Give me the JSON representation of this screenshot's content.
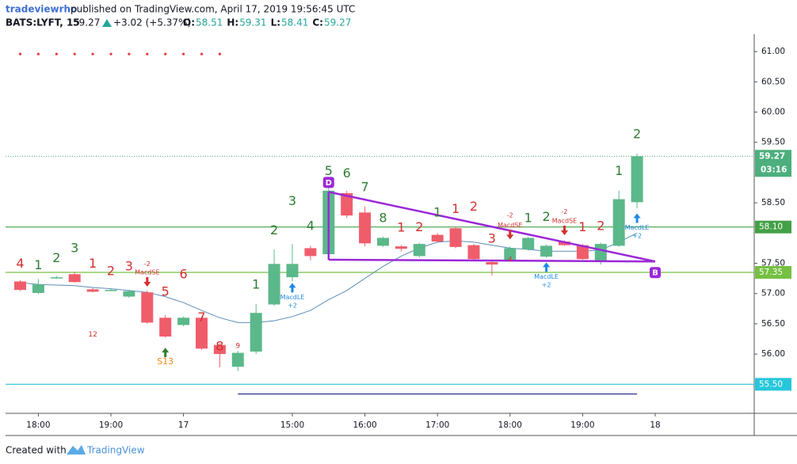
{
  "header": {
    "author": "tradeviewrho",
    "published": "published on TradingView.com, April 17, 2019 19:56:45 UTC",
    "symbol": "BATS:LYFT, 15",
    "last": "59.27",
    "change": "+3.02 (+5.37%)",
    "ohlc": [
      {
        "label": "O:",
        "value": "58.51"
      },
      {
        "label": "H:",
        "value": "59.31"
      },
      {
        "label": "L:",
        "value": "58.41"
      },
      {
        "label": "C:",
        "value": "59.27"
      }
    ]
  },
  "footer": {
    "prefix": "Created with",
    "brand": "TradingView"
  },
  "chart_data": {
    "type": "candlestick",
    "categories": [
      null,
      "18:00",
      null,
      null,
      null,
      "19:00",
      null,
      null,
      null,
      "17",
      null,
      null,
      null,
      null,
      null,
      "15:00",
      null,
      null,
      null,
      "16:00",
      null,
      null,
      null,
      "17:00",
      null,
      null,
      null,
      "18:00",
      null,
      null,
      null,
      "19:00",
      null,
      null,
      null,
      "18"
    ],
    "open": [
      57.2,
      57.01,
      57.25,
      57.32,
      57.07,
      57.06,
      56.95,
      57.02,
      56.6,
      56.48,
      56.6,
      56.15,
      55.79,
      56.04,
      56.82,
      57.27,
      57.75,
      57.65,
      58.66,
      58.34,
      57.79,
      57.78,
      57.62,
      57.97,
      58.08,
      57.8,
      57.52,
      57.56,
      57.73,
      57.61,
      57.86,
      57.8,
      57.53,
      57.79,
      58.51,
      null
    ],
    "high": [
      57.22,
      57.24,
      57.29,
      57.36,
      57.09,
      57.08,
      57.06,
      57.05,
      56.64,
      56.62,
      56.62,
      56.18,
      56.05,
      56.83,
      57.73,
      57.82,
      57.79,
      58.75,
      58.7,
      58.44,
      57.94,
      57.8,
      57.84,
      58.0,
      58.1,
      57.82,
      57.54,
      57.78,
      57.94,
      57.81,
      57.88,
      57.82,
      57.84,
      58.7,
      59.31,
      null
    ],
    "low": [
      57.04,
      56.99,
      57.24,
      57.18,
      57.02,
      57.04,
      56.93,
      56.5,
      56.27,
      56.46,
      56.07,
      55.78,
      55.72,
      56.0,
      56.8,
      57.2,
      57.55,
      57.63,
      58.25,
      57.78,
      57.77,
      57.7,
      57.6,
      57.84,
      57.75,
      57.55,
      57.3,
      57.54,
      57.71,
      57.59,
      57.79,
      57.56,
      57.48,
      57.77,
      58.41,
      null
    ],
    "close": [
      57.06,
      57.15,
      57.27,
      57.19,
      57.03,
      57.06,
      57.04,
      56.52,
      56.29,
      56.6,
      56.09,
      56.0,
      56.02,
      56.68,
      57.49,
      57.49,
      57.62,
      58.7,
      58.29,
      57.83,
      57.92,
      57.74,
      57.82,
      57.86,
      57.77,
      57.57,
      57.48,
      57.75,
      57.92,
      57.79,
      57.8,
      57.57,
      57.82,
      58.56,
      59.27,
      null
    ],
    "up_color": "#5bb88a",
    "down_color": "#ef5d6b",
    "line": {
      "color": "#5b8db8",
      "values": [
        57.18,
        57.15,
        57.14,
        57.13,
        57.1,
        57.08,
        57.05,
        57.02,
        56.95,
        56.85,
        56.72,
        56.6,
        56.52,
        56.52,
        56.55,
        56.62,
        56.72,
        56.9,
        57.05,
        57.25,
        57.45,
        57.62,
        57.75,
        57.85,
        57.87,
        57.85,
        57.8,
        57.75,
        57.73,
        57.7,
        57.7,
        57.7,
        57.72,
        57.85,
        58.0,
        null
      ]
    },
    "dots": {
      "color": "#e53935",
      "values": [
        60.96,
        60.96,
        60.96,
        60.96,
        60.96,
        60.96,
        60.96,
        60.96,
        60.96,
        60.96,
        60.96,
        60.96,
        null,
        null,
        null,
        null,
        null,
        null,
        null,
        null,
        null,
        null,
        null,
        null,
        null,
        null,
        null,
        null,
        null,
        null,
        null,
        null,
        null,
        null,
        null,
        null
      ]
    },
    "ylim": [
      55.02,
      61.29
    ],
    "yticks": [
      {
        "value": 61,
        "label": "61.00"
      },
      {
        "value": 60.5,
        "label": "60.50"
      },
      {
        "value": 60,
        "label": "60.00"
      },
      {
        "value": 59.5,
        "label": "59.50"
      },
      {
        "value": 58.5,
        "label": "58.50"
      },
      {
        "value": 57.5,
        "label": "57.50"
      },
      {
        "value": 57,
        "label": "57.00"
      },
      {
        "value": 56.5,
        "label": "56.50"
      },
      {
        "value": 56,
        "label": "56.00"
      }
    ],
    "grid": false,
    "hlines": [
      {
        "value": 58.1,
        "label": "58.10",
        "color": "#43a047"
      },
      {
        "value": 57.35,
        "label": "57.35",
        "color": "#76c043"
      },
      {
        "value": 55.5,
        "label": "55.50",
        "color": "#26c6da"
      }
    ],
    "last_price": {
      "value": 59.27,
      "countdown": "03:16",
      "color": "#4caf7d"
    },
    "segment": {
      "color": "#1a237e",
      "y": 55.34,
      "x": [
        12,
        34
      ]
    },
    "pattern": {
      "color": "#9c27d8",
      "points": [
        {
          "label": "D",
          "x": 17,
          "y": 58.68
        },
        {
          "label": "B",
          "x": 35,
          "y": 57.53
        }
      ],
      "base": {
        "x": 17,
        "y": 57.56
      }
    },
    "annotations": {
      "td_red": {
        "color": "#d32f2f",
        "items": [
          {
            "text": "4",
            "x": 0,
            "y": 57.49
          },
          {
            "text": "1",
            "x": 4,
            "y": 57.49
          },
          {
            "text": "2",
            "x": 5,
            "y": 57.36
          },
          {
            "text": "3",
            "x": 6,
            "y": 57.44
          },
          {
            "text": "5",
            "x": 8,
            "y": 57.02
          },
          {
            "text": "6",
            "x": 9,
            "y": 57.31
          },
          {
            "text": "7",
            "x": 10,
            "y": 56.6
          },
          {
            "text": "8",
            "x": 11,
            "y": 56.12
          },
          {
            "text": "1",
            "x": 21,
            "y": 58.08
          },
          {
            "text": "2",
            "x": 22,
            "y": 58.09
          },
          {
            "text": "1",
            "x": 24,
            "y": 58.39
          },
          {
            "text": "2",
            "x": 25,
            "y": 58.43
          },
          {
            "text": "3",
            "x": 26,
            "y": 57.9
          },
          {
            "text": "1",
            "x": 31,
            "y": 58.09
          },
          {
            "text": "2",
            "x": 32,
            "y": 58.11
          }
        ]
      },
      "td_green": {
        "color": "#2e7d32",
        "items": [
          {
            "text": "1",
            "x": 1,
            "y": 57.46
          },
          {
            "text": "2",
            "x": 2,
            "y": 57.58
          },
          {
            "text": "3",
            "x": 3,
            "y": 57.74
          },
          {
            "text": "1",
            "x": 13,
            "y": 57.14
          },
          {
            "text": "2",
            "x": 14,
            "y": 58.04
          },
          {
            "text": "3",
            "x": 15,
            "y": 58.52
          },
          {
            "text": "4",
            "x": 16,
            "y": 58.11
          },
          {
            "text": "5",
            "x": 17,
            "y": 59.02
          },
          {
            "text": "6",
            "x": 18,
            "y": 58.98
          },
          {
            "text": "7",
            "x": 19,
            "y": 58.75
          },
          {
            "text": "8",
            "x": 20,
            "y": 58.24
          },
          {
            "text": "1",
            "x": 23,
            "y": 58.33
          },
          {
            "text": "1",
            "x": 28,
            "y": 58.24
          },
          {
            "text": "2",
            "x": 29,
            "y": 58.26
          },
          {
            "text": "1",
            "x": 33,
            "y": 59.02
          },
          {
            "text": "2",
            "x": 34,
            "y": 59.63
          }
        ]
      },
      "small_red": {
        "color": "#d32f2f",
        "items": [
          {
            "text": "9",
            "x": 12,
            "y": 56.13
          },
          {
            "text": "4",
            "x": 27,
            "y": 57.56
          },
          {
            "text": "12",
            "x": 4,
            "y": 56.32
          }
        ]
      },
      "macd_se": {
        "color": "#d32f2f",
        "items": [
          {
            "text": "-2",
            "x": 7,
            "y": 57.49
          },
          {
            "text": "MacdSE",
            "x": 7,
            "y": 57.35,
            "arrow": "down"
          },
          {
            "text": "-2",
            "x": 27,
            "y": 58.29
          },
          {
            "text": "MacdSE",
            "x": 27,
            "y": 58.13,
            "arrow": "down"
          },
          {
            "text": "-2",
            "x": 30,
            "y": 58.35
          },
          {
            "text": "MacdSE",
            "x": 30,
            "y": 58.2,
            "arrow": "down"
          }
        ]
      },
      "macd_le": {
        "color": "#1e88e5",
        "items": [
          {
            "text": "MacdLE",
            "x": 15,
            "y": 56.94,
            "arrow": "up"
          },
          {
            "text": "+2",
            "x": 15,
            "y": 56.8
          },
          {
            "text": "MacdLE",
            "x": 29,
            "y": 57.28,
            "arrow": "up"
          },
          {
            "text": "+2",
            "x": 29,
            "y": 57.14
          },
          {
            "text": "MacdLE",
            "x": 34,
            "y": 58.09,
            "arrow": "up"
          },
          {
            "text": "+2",
            "x": 34,
            "y": 57.95
          }
        ]
      },
      "setup": {
        "color": "#ef8a17",
        "arrow_color": "#2e7d32",
        "items": [
          {
            "text": "S13",
            "x": 8,
            "y": 55.87,
            "arrow": "up"
          }
        ]
      }
    }
  }
}
